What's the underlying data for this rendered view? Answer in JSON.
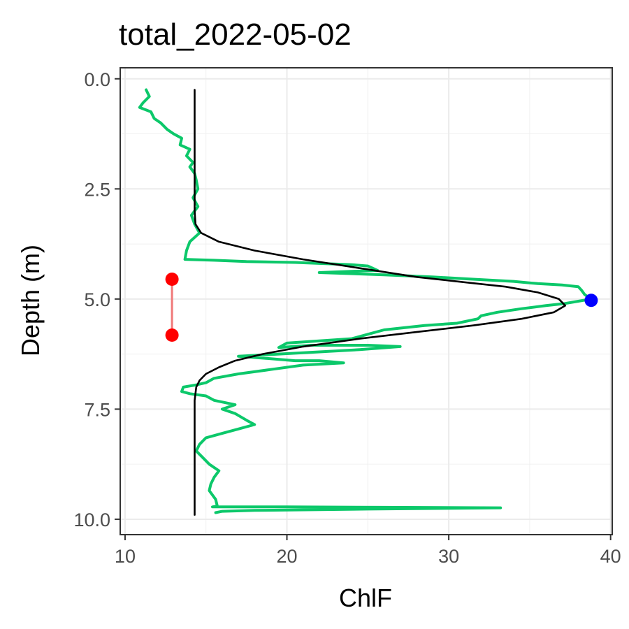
{
  "chart_data": {
    "type": "line",
    "title": "total_2022-05-02",
    "xlabel": "ChlF",
    "ylabel": "Depth (m)",
    "xlim": [
      9.7,
      40.1
    ],
    "ylim": [
      10.35,
      -0.25
    ],
    "y_reversed": true,
    "grid": true,
    "legend": "none",
    "x_ticks": [
      10,
      20,
      30,
      40
    ],
    "x_tick_labels": [
      "10",
      "20",
      "30",
      "40"
    ],
    "y_ticks": [
      0,
      2.5,
      5,
      7.5,
      10
    ],
    "y_tick_labels": [
      "0.0",
      "2.5",
      "5.0",
      "7.5",
      "10.0"
    ],
    "colors": {
      "observed": "#0cc86a",
      "fit": "#000000",
      "peak_point": "#0000ff",
      "layer_points": "#ff0000",
      "layer_segment": "#f07a7a"
    },
    "series": [
      {
        "kind": "observed_profile",
        "color": "#0cc86a",
        "points": [
          [
            11.3,
            0.25
          ],
          [
            11.5,
            0.4
          ],
          [
            11.1,
            0.55
          ],
          [
            10.9,
            0.65
          ],
          [
            11.6,
            0.75
          ],
          [
            11.8,
            0.9
          ],
          [
            12.2,
            1.0
          ],
          [
            12.6,
            1.15
          ],
          [
            13.0,
            1.25
          ],
          [
            13.5,
            1.35
          ],
          [
            13.4,
            1.5
          ],
          [
            14.0,
            1.6
          ],
          [
            13.8,
            1.75
          ],
          [
            14.2,
            1.9
          ],
          [
            14.0,
            2.0
          ],
          [
            14.3,
            2.15
          ],
          [
            14.4,
            2.3
          ],
          [
            14.5,
            2.5
          ],
          [
            14.2,
            2.7
          ],
          [
            14.5,
            2.9
          ],
          [
            14.1,
            3.1
          ],
          [
            14.3,
            3.3
          ],
          [
            14.6,
            3.5
          ],
          [
            14.0,
            3.7
          ],
          [
            13.8,
            3.9
          ],
          [
            13.7,
            4.1
          ],
          [
            15.5,
            4.12
          ],
          [
            17.5,
            4.15
          ],
          [
            20.5,
            4.17
          ],
          [
            24.0,
            4.22
          ],
          [
            25.0,
            4.25
          ],
          [
            25.6,
            4.35
          ],
          [
            22.0,
            4.4
          ],
          [
            26.0,
            4.45
          ],
          [
            29.0,
            4.5
          ],
          [
            31.5,
            4.55
          ],
          [
            34.0,
            4.6
          ],
          [
            35.5,
            4.65
          ],
          [
            37.0,
            4.68
          ],
          [
            38.0,
            4.72
          ],
          [
            38.2,
            4.8
          ],
          [
            38.4,
            4.9
          ],
          [
            38.8,
            5.0
          ],
          [
            38.0,
            5.05
          ],
          [
            37.2,
            5.1
          ],
          [
            36.0,
            5.15
          ],
          [
            34.5,
            5.22
          ],
          [
            33.0,
            5.3
          ],
          [
            32.0,
            5.38
          ],
          [
            31.8,
            5.45
          ],
          [
            30.5,
            5.55
          ],
          [
            28.5,
            5.6
          ],
          [
            26.0,
            5.7
          ],
          [
            25.0,
            5.8
          ],
          [
            24.0,
            5.9
          ],
          [
            22.0,
            5.95
          ],
          [
            20.0,
            6.0
          ],
          [
            19.5,
            6.1
          ],
          [
            21.5,
            6.05
          ],
          [
            25.0,
            6.05
          ],
          [
            27.0,
            6.08
          ],
          [
            24.5,
            6.15
          ],
          [
            22.0,
            6.2
          ],
          [
            19.5,
            6.25
          ],
          [
            17.0,
            6.3
          ],
          [
            18.8,
            6.35
          ],
          [
            20.5,
            6.4
          ],
          [
            22.0,
            6.4
          ],
          [
            23.5,
            6.45
          ],
          [
            21.0,
            6.5
          ],
          [
            19.0,
            6.6
          ],
          [
            17.0,
            6.7
          ],
          [
            15.5,
            6.8
          ],
          [
            15.0,
            6.9
          ],
          [
            14.4,
            6.95
          ],
          [
            13.6,
            7.0
          ],
          [
            13.5,
            7.1
          ],
          [
            14.0,
            7.15
          ],
          [
            15.0,
            7.2
          ],
          [
            15.5,
            7.3
          ],
          [
            16.8,
            7.4
          ],
          [
            16.0,
            7.5
          ],
          [
            16.8,
            7.6
          ],
          [
            17.5,
            7.75
          ],
          [
            18.0,
            7.85
          ],
          [
            17.0,
            7.95
          ],
          [
            16.0,
            8.05
          ],
          [
            15.0,
            8.15
          ],
          [
            14.6,
            8.3
          ],
          [
            14.4,
            8.45
          ],
          [
            14.8,
            8.6
          ],
          [
            15.2,
            8.75
          ],
          [
            15.8,
            8.9
          ],
          [
            15.5,
            9.05
          ],
          [
            15.3,
            9.2
          ],
          [
            15.2,
            9.35
          ],
          [
            15.6,
            9.55
          ],
          [
            15.7,
            9.7
          ],
          [
            15.4,
            9.72
          ],
          [
            20.0,
            9.72
          ],
          [
            26.0,
            9.73
          ],
          [
            33.2,
            9.74
          ],
          [
            25.0,
            9.77
          ],
          [
            18.0,
            9.8
          ],
          [
            16.0,
            9.82
          ],
          [
            15.6,
            9.85
          ]
        ]
      },
      {
        "kind": "fitted_curve",
        "color": "#000000",
        "points": [
          [
            14.3,
            0.25
          ],
          [
            14.3,
            1.0
          ],
          [
            14.3,
            2.0
          ],
          [
            14.3,
            3.0
          ],
          [
            14.35,
            3.3
          ],
          [
            14.7,
            3.5
          ],
          [
            15.8,
            3.7
          ],
          [
            18.0,
            3.9
          ],
          [
            21.0,
            4.1
          ],
          [
            24.5,
            4.3
          ],
          [
            28.0,
            4.5
          ],
          [
            31.0,
            4.62
          ],
          [
            33.5,
            4.72
          ],
          [
            35.5,
            4.85
          ],
          [
            36.8,
            5.0
          ],
          [
            37.2,
            5.15
          ],
          [
            36.5,
            5.3
          ],
          [
            34.5,
            5.45
          ],
          [
            31.5,
            5.6
          ],
          [
            28.0,
            5.75
          ],
          [
            24.5,
            5.9
          ],
          [
            21.0,
            6.08
          ],
          [
            18.5,
            6.25
          ],
          [
            16.8,
            6.4
          ],
          [
            15.8,
            6.55
          ],
          [
            15.0,
            6.7
          ],
          [
            14.6,
            6.85
          ],
          [
            14.4,
            7.0
          ],
          [
            14.3,
            7.3
          ],
          [
            14.3,
            8.0
          ],
          [
            14.3,
            9.0
          ],
          [
            14.3,
            9.9
          ]
        ]
      }
    ],
    "markers": {
      "peak": {
        "x": 38.8,
        "y": 5.03,
        "color": "#0000ff"
      },
      "layer_top": {
        "x": 12.9,
        "y": 4.55,
        "color": "#ff0000"
      },
      "layer_bottom": {
        "x": 12.9,
        "y": 5.82,
        "color": "#ff0000"
      }
    }
  }
}
